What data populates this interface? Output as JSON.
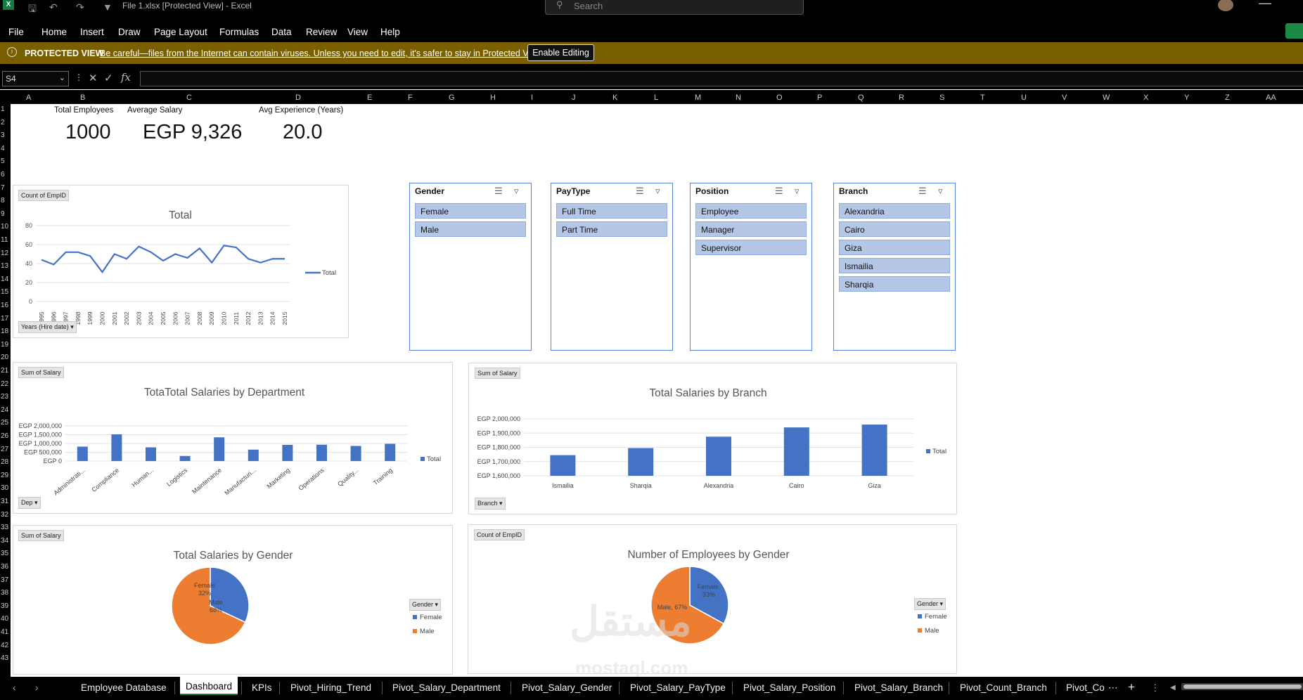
{
  "window": {
    "title": "File 1.xlsx  [Protected View]  -  Excel",
    "search_placeholder": "Search"
  },
  "ribbon": {
    "tabs": [
      "File",
      "Home",
      "Insert",
      "Draw",
      "Page Layout",
      "Formulas",
      "Data",
      "Review",
      "View",
      "Help"
    ]
  },
  "protected_view": {
    "label": "PROTECTED VIEW",
    "message": "Be careful—files from the Internet can contain viruses. Unless you need to edit, it's safer to stay in Protected View.",
    "button": "Enable Editing"
  },
  "formula_bar": {
    "name_box": "S4",
    "fx": "fx",
    "value": ""
  },
  "columns": [
    "A",
    "B",
    "C",
    "D",
    "E",
    "F",
    "G",
    "H",
    "I",
    "J",
    "K",
    "L",
    "M",
    "N",
    "O",
    "P",
    "Q",
    "R",
    "S",
    "T",
    "U",
    "V",
    "W",
    "X",
    "Y",
    "Z",
    "AA"
  ],
  "rows": [
    "1",
    "2",
    "3",
    "4",
    "5",
    "6",
    "7",
    "8",
    "9",
    "10",
    "11",
    "12",
    "13",
    "14",
    "15",
    "16",
    "17",
    "18",
    "19",
    "20",
    "21",
    "22",
    "23",
    "24",
    "25",
    "26",
    "27",
    "28",
    "29",
    "30",
    "31",
    "32",
    "33",
    "34",
    "35",
    "36",
    "37",
    "38",
    "39",
    "40",
    "41",
    "42",
    "43"
  ],
  "kpis": [
    {
      "label": "Total Employees",
      "value": "1000"
    },
    {
      "label": "Average Salary",
      "value": "EGP 9,326"
    },
    {
      "label": "Avg Experience (Years)",
      "value": "20.0"
    }
  ],
  "slicers": [
    {
      "title": "Gender",
      "items": [
        "Female",
        "Male"
      ]
    },
    {
      "title": "PayType",
      "items": [
        "Full Time",
        "Part Time"
      ]
    },
    {
      "title": "Position",
      "items": [
        "Employee",
        "Manager",
        "Supervisor"
      ]
    },
    {
      "title": "Branch",
      "items": [
        "Alexandria",
        "Cairo",
        "Giza",
        "Ismailia",
        "Sharqia"
      ]
    }
  ],
  "charts": {
    "hiring": {
      "field_button": "Count of EmpID",
      "axis_button": "Years (Hire date)",
      "legend": "Total"
    },
    "dept": {
      "field_button": "Sum of Salary",
      "axis_button": "Dep",
      "legend": "Total"
    },
    "branch": {
      "field_button": "Sum of Salary",
      "axis_button": "Branch",
      "legend": "Total"
    },
    "gender_salary": {
      "field_button": "Sum of Salary",
      "legend_button": "Gender",
      "legend": [
        "Female",
        "Male"
      ]
    },
    "gender_count": {
      "field_button": "Count of EmpID",
      "legend_button": "Gender",
      "legend": [
        "Female",
        "Male"
      ]
    }
  },
  "chart_data": [
    {
      "type": "line",
      "title": "Total",
      "x": [
        "1995",
        "1996",
        "1997",
        "1998",
        "1999",
        "2000",
        "2001",
        "2002",
        "2003",
        "2004",
        "2005",
        "2006",
        "2007",
        "2008",
        "2009",
        "2010",
        "2011",
        "2012",
        "2013",
        "2014",
        "2015"
      ],
      "series": [
        {
          "name": "Total",
          "values": [
            44,
            39,
            52,
            52,
            48,
            31,
            50,
            45,
            58,
            52,
            43,
            50,
            46,
            56,
            41,
            59,
            57,
            45,
            41,
            45,
            45
          ]
        }
      ],
      "yticks": [
        "0",
        "20",
        "40",
        "60",
        "80"
      ],
      "ylim": [
        0,
        80
      ],
      "color": "#4472c4"
    },
    {
      "type": "bar",
      "title": "TotaTotal Salaries by Department",
      "categories": [
        "Administrati...",
        "Compliance",
        "Human...",
        "Logistics",
        "Maintenance",
        "Manufacturi...",
        "Marketing",
        "Operations",
        "Quality...",
        "Training"
      ],
      "series": [
        {
          "name": "Total",
          "values": [
            820000,
            1520000,
            780000,
            290000,
            1350000,
            650000,
            920000,
            930000,
            860000,
            980000
          ]
        }
      ],
      "yticks": [
        "EGP 0",
        "EGP 500,000",
        "EGP 1,000,000",
        "EGP 1,500,000",
        "EGP 2,000,000"
      ],
      "ylim": [
        0,
        2000000
      ],
      "color": "#4472c4"
    },
    {
      "type": "bar",
      "title": "Total Salaries by Branch",
      "categories": [
        "Ismailia",
        "Sharqia",
        "Alexandria",
        "Cairo",
        "Giza"
      ],
      "series": [
        {
          "name": "Total",
          "values": [
            1745000,
            1795000,
            1875000,
            1940000,
            1960000
          ]
        }
      ],
      "yticks": [
        "EGP 1,600,000",
        "EGP 1,700,000",
        "EGP 1,800,000",
        "EGP 1,900,000",
        "EGP 2,000,000"
      ],
      "ylim": [
        1600000,
        2000000
      ],
      "color": "#4472c4"
    },
    {
      "type": "pie",
      "title": "Total Salaries by Gender",
      "categories": [
        "Female",
        "Male"
      ],
      "values": [
        32,
        68
      ],
      "labels": [
        "Female\n32%",
        "Male\n68%"
      ],
      "colors": [
        "#4472c4",
        "#ed7d31"
      ]
    },
    {
      "type": "pie",
      "title": "Number of Employees by Gender",
      "categories": [
        "Female",
        "Male"
      ],
      "values": [
        33,
        67
      ],
      "labels": [
        "Female,\n33%",
        "Male, 67%"
      ],
      "colors": [
        "#4472c4",
        "#ed7d31"
      ]
    }
  ],
  "sheet_tabs": [
    "Employee Database",
    "Dashboard",
    "KPIs",
    "Pivot_Hiring_Trend",
    "Pivot_Salary_Department",
    "Pivot_Salary_Gender",
    "Pivot_Salary_PayType",
    "Pivot_Salary_Position",
    "Pivot_Salary_Branch",
    "Pivot_Count_Branch",
    "Pivot_Co"
  ],
  "active_tab": "Dashboard",
  "watermark": {
    "arabic": "مستقل",
    "latin": "mostaql.com"
  }
}
